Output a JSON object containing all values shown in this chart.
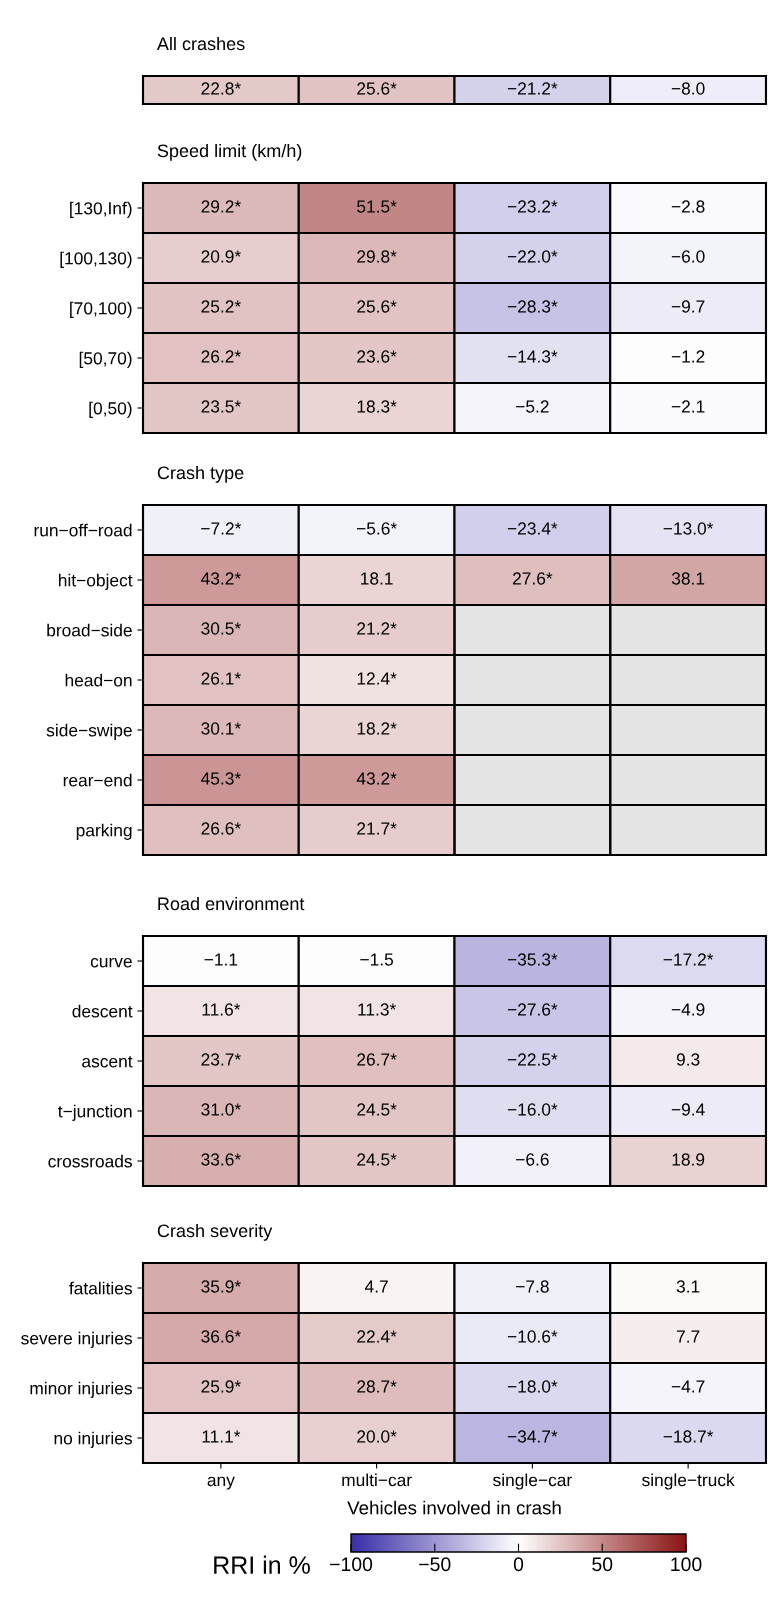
{
  "chart_data": [
    {
      "type": "heatmap",
      "title": "All crashes",
      "categories": [
        null,
        null,
        null,
        null
      ],
      "y_categories": [
        null
      ],
      "tick_labels": false,
      "cells": [
        [
          22.8,
          25.6,
          -21.2,
          -8.0
        ]
      ],
      "cell_labels": [
        [
          "22.8*",
          "25.6*",
          "−21.2*",
          "−8.0"
        ]
      ]
    },
    {
      "type": "heatmap",
      "title": "Speed limit (km/h)",
      "categories": [
        null,
        null,
        null,
        null
      ],
      "y_categories": [
        "[130,Inf)",
        "[100,130)",
        "[70,100)",
        "[50,70)",
        "[0,50)"
      ],
      "tick_labels": "y",
      "cells": [
        [
          29.2,
          51.5,
          -23.2,
          -2.8
        ],
        [
          20.9,
          29.8,
          -22.0,
          -6.0
        ],
        [
          25.2,
          25.6,
          -28.3,
          -9.7
        ],
        [
          26.2,
          23.6,
          -14.3,
          -1.2
        ],
        [
          23.5,
          18.3,
          -5.2,
          -2.1
        ]
      ],
      "cell_labels": [
        [
          "29.2*",
          "51.5*",
          "−23.2*",
          "−2.8"
        ],
        [
          "20.9*",
          "29.8*",
          "−22.0*",
          "−6.0"
        ],
        [
          "25.2*",
          "25.6*",
          "−28.3*",
          "−9.7"
        ],
        [
          "26.2*",
          "23.6*",
          "−14.3*",
          "−1.2"
        ],
        [
          "23.5*",
          "18.3*",
          "−5.2",
          "−2.1"
        ]
      ]
    },
    {
      "type": "heatmap",
      "title": "Crash type",
      "categories": [
        null,
        null,
        null,
        null
      ],
      "y_categories": [
        "run−off−road",
        "hit−object",
        "broad−side",
        "head−on",
        "side−swipe",
        "rear−end",
        "parking"
      ],
      "tick_labels": "y",
      "cells": [
        [
          -7.2,
          -5.6,
          -23.4,
          -13.0
        ],
        [
          43.2,
          18.1,
          27.6,
          38.1
        ],
        [
          30.5,
          21.2,
          null,
          null
        ],
        [
          26.1,
          12.4,
          null,
          null
        ],
        [
          30.1,
          18.2,
          null,
          null
        ],
        [
          45.3,
          43.2,
          null,
          null
        ],
        [
          26.6,
          21.7,
          null,
          null
        ]
      ],
      "cell_labels": [
        [
          "−7.2*",
          "−5.6*",
          "−23.4*",
          "−13.0*"
        ],
        [
          "43.2*",
          "18.1",
          "27.6*",
          "38.1"
        ],
        [
          "30.5*",
          "21.2*",
          null,
          null
        ],
        [
          "26.1*",
          "12.4*",
          null,
          null
        ],
        [
          "30.1*",
          "18.2*",
          null,
          null
        ],
        [
          "45.3*",
          "43.2*",
          null,
          null
        ],
        [
          "26.6*",
          "21.7*",
          null,
          null
        ]
      ]
    },
    {
      "type": "heatmap",
      "title": "Road environment",
      "categories": [
        null,
        null,
        null,
        null
      ],
      "y_categories": [
        "curve",
        "descent",
        "ascent",
        "t−junction",
        "crossroads"
      ],
      "tick_labels": "y",
      "cells": [
        [
          -1.1,
          -1.5,
          -35.3,
          -17.2
        ],
        [
          11.6,
          11.3,
          -27.6,
          -4.9
        ],
        [
          23.7,
          26.7,
          -22.5,
          9.3
        ],
        [
          31.0,
          24.5,
          -16.0,
          -9.4
        ],
        [
          33.6,
          24.5,
          -6.6,
          18.9
        ]
      ],
      "cell_labels": [
        [
          "−1.1",
          "−1.5",
          "−35.3*",
          "−17.2*"
        ],
        [
          "11.6*",
          "11.3*",
          "−27.6*",
          "−4.9"
        ],
        [
          "23.7*",
          "26.7*",
          "−22.5*",
          "9.3"
        ],
        [
          "31.0*",
          "24.5*",
          "−16.0*",
          "−9.4"
        ],
        [
          "33.6*",
          "24.5*",
          "−6.6",
          "18.9"
        ]
      ]
    },
    {
      "type": "heatmap",
      "title": "Crash severity",
      "xlabel": "Vehicles involved in crash",
      "clabel": "RRI in %",
      "categories": [
        "any",
        "multi−car",
        "single−car",
        "single−truck"
      ],
      "y_categories": [
        "fatalities",
        "severe injuries",
        "minor injuries",
        "no injuries"
      ],
      "clim": [
        -100,
        100
      ],
      "cticks": [
        {
          "value": -100,
          "label": "−100"
        },
        {
          "value": -50,
          "label": "−50"
        },
        0,
        50,
        100
      ],
      "cells": [
        [
          35.9,
          4.7,
          -7.8,
          3.1
        ],
        [
          36.6,
          22.4,
          -10.6,
          7.7
        ],
        [
          25.9,
          28.7,
          -18.0,
          -4.7
        ],
        [
          11.1,
          20.0,
          -34.7,
          -18.7
        ]
      ],
      "cell_labels": [
        [
          "35.9*",
          "4.7",
          "−7.8",
          "3.1"
        ],
        [
          "36.6*",
          "22.4*",
          "−10.6*",
          "7.7"
        ],
        [
          "25.9*",
          "28.7*",
          "−18.0*",
          "−4.7"
        ],
        [
          "11.1*",
          "20.0*",
          "−34.7*",
          "−18.7*"
        ]
      ]
    }
  ]
}
